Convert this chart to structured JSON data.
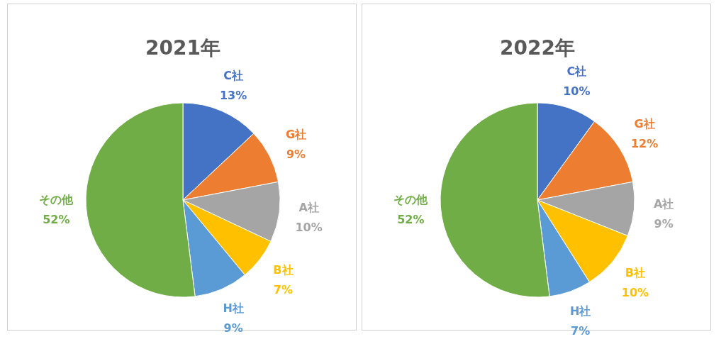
{
  "chart_data": [
    {
      "type": "pie",
      "title": "2021年",
      "categories": [
        "C社",
        "G社",
        "A社",
        "B社",
        "H社",
        "その他"
      ],
      "values": [
        13,
        9,
        10,
        7,
        9,
        52
      ],
      "value_labels": [
        "13%",
        "9%",
        "10%",
        "7%",
        "9%",
        "52%"
      ],
      "colors": [
        "#4472c4",
        "#ed7d31",
        "#a5a5a5",
        "#ffc000",
        "#5b9bd5",
        "#70ad47"
      ]
    },
    {
      "type": "pie",
      "title": "2022年",
      "categories": [
        "C社",
        "G社",
        "A社",
        "B社",
        "H社",
        "その他"
      ],
      "values": [
        10,
        12,
        9,
        10,
        7,
        52
      ],
      "value_labels": [
        "10%",
        "12%",
        "9%",
        "10%",
        "7%",
        "52%"
      ],
      "colors": [
        "#4472c4",
        "#ed7d31",
        "#a5a5a5",
        "#ffc000",
        "#5b9bd5",
        "#70ad47"
      ]
    }
  ]
}
